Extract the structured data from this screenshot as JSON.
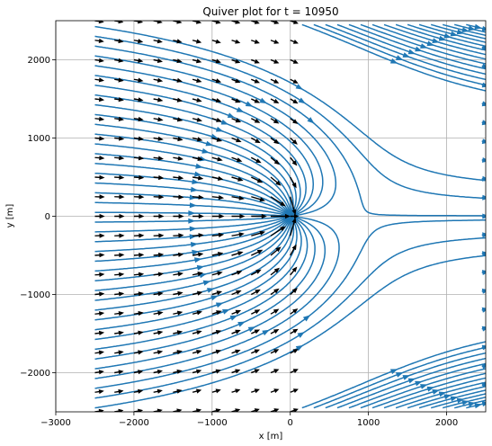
{
  "chart_data": {
    "type": "quiver",
    "title": "Quiver plot for  t = 10950",
    "xlabel": "x [m]",
    "ylabel": "y [m]",
    "xlim": [
      -3000,
      2500
    ],
    "ylim": [
      -2500,
      2500
    ],
    "xticks": [
      -3000,
      -2000,
      -1000,
      0,
      1000,
      2000
    ],
    "yticks": [
      -2000,
      -1000,
      0,
      1000,
      2000
    ],
    "grid": true,
    "source": {
      "x": 0,
      "y": 0
    },
    "colors": {
      "streamline": "#1f77b4",
      "arrow": "#000000",
      "axis": "#000000",
      "grid": "#b0b0b0"
    },
    "arrow_grid": {
      "x_start": -2500,
      "x_step": 250,
      "x_count": 11,
      "y_start": -2500,
      "y_step": 250,
      "y_count": 21
    }
  }
}
